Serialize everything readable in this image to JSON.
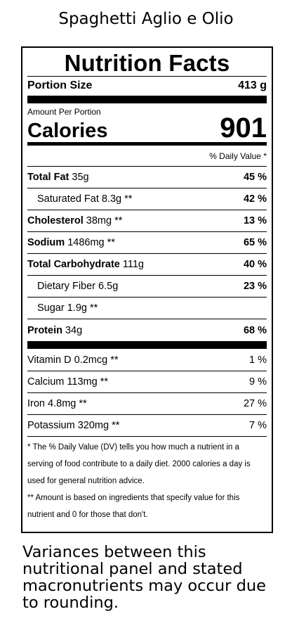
{
  "recipe_title": "Spaghetti Aglio e Olio",
  "label": {
    "title": "Nutrition Facts",
    "portion_label": "Portion Size",
    "portion_value": "413 g",
    "amount_per": "Amount Per Portion",
    "calories_label": "Calories",
    "calories_value": "901",
    "dv_header": "% Daily Value *",
    "nutrients": [
      {
        "name": "Total Fat",
        "amount": "35g",
        "pct": "45 %"
      },
      {
        "name": "Saturated Fat",
        "amount": "8.3g **",
        "pct": "42 %"
      },
      {
        "name": "Cholesterol",
        "amount": "38mg **",
        "pct": "13 %"
      },
      {
        "name": "Sodium",
        "amount": "1486mg **",
        "pct": "65 %"
      },
      {
        "name": "Total Carbohydrate",
        "amount": "111g",
        "pct": "40 %"
      },
      {
        "name": "Dietary Fiber",
        "amount": "6.5g",
        "pct": "23 %"
      },
      {
        "name": "Sugar",
        "amount": "1.9g **",
        "pct": ""
      },
      {
        "name": "Protein",
        "amount": "34g",
        "pct": "68 %"
      }
    ],
    "vitamins": [
      {
        "name": "Vitamin D",
        "amount": "0.2mcg **",
        "pct": "1 %"
      },
      {
        "name": "Calcium",
        "amount": "113mg **",
        "pct": "9 %"
      },
      {
        "name": "Iron",
        "amount": "4.8mg **",
        "pct": "27 %"
      },
      {
        "name": "Potassium",
        "amount": "320mg **",
        "pct": "7 %"
      }
    ],
    "footnote_1": "* The % Daily Value (DV) tells you how much a nutrient in a serving of food contribute to a daily diet. 2000 calories a day is used for general nutrition advice.",
    "footnote_2": "** Amount is based on ingredients that specify value for this nutrient and 0 for those that don't."
  },
  "variance_note": "Variances between this nutritional panel and stated macronutrients may occur due to rounding."
}
